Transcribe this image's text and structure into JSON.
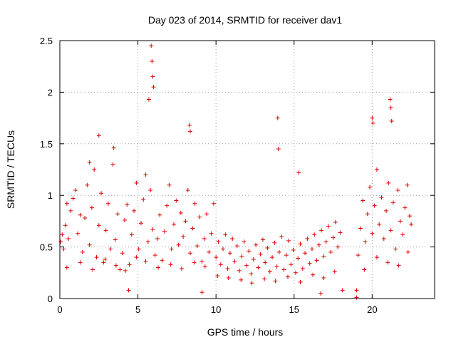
{
  "chart_data": {
    "type": "scatter",
    "title": "Day 023 of 2014, SRMTID for receiver dav1",
    "xlabel": "GPS time / hours",
    "ylabel": "SRMTID / TECUs",
    "xlim": [
      0,
      24
    ],
    "ylim": [
      0,
      2.5
    ],
    "xticks": [
      0,
      5,
      10,
      15,
      20
    ],
    "yticks": [
      0,
      0.5,
      1,
      1.5,
      2,
      2.5
    ],
    "xtick_labels": [
      "0",
      "5",
      "10",
      "15",
      "20"
    ],
    "ytick_labels": [
      "0",
      "0.5",
      "1",
      "1.5",
      "2",
      "2.5"
    ],
    "grid": true,
    "marker": "plus",
    "series": [
      {
        "name": "SRMTID",
        "color": "#e00000",
        "x": [
          0.05,
          0.15,
          0.25,
          0.35,
          0.45,
          0.55,
          0.7,
          0.85,
          1.0,
          1.15,
          1.3,
          1.45,
          1.6,
          1.75,
          1.9,
          2.05,
          2.2,
          2.35,
          2.5,
          2.65,
          2.8,
          2.95,
          3.1,
          3.25,
          3.4,
          3.55,
          3.7,
          3.85,
          4.0,
          4.15,
          4.3,
          4.45,
          4.6,
          4.75,
          4.9,
          5.05,
          5.2,
          5.35,
          5.5,
          5.65,
          5.8,
          5.95,
          6.1,
          6.25,
          6.4,
          6.55,
          6.7,
          6.85,
          7.0,
          7.15,
          7.3,
          7.45,
          7.6,
          7.75,
          7.9,
          8.05,
          8.2,
          8.35,
          8.5,
          8.65,
          8.8,
          8.95,
          9.1,
          9.25,
          9.4,
          9.55,
          9.7,
          9.85,
          10.0,
          10.15,
          10.3,
          10.45,
          10.6,
          10.75,
          10.9,
          11.05,
          11.2,
          11.35,
          11.5,
          11.65,
          11.8,
          11.95,
          12.1,
          12.25,
          12.4,
          12.55,
          12.7,
          12.85,
          13.0,
          13.15,
          13.3,
          13.45,
          13.6,
          13.75,
          13.9,
          14.05,
          14.2,
          14.35,
          14.5,
          14.65,
          14.8,
          14.95,
          15.1,
          15.25,
          15.4,
          15.55,
          15.7,
          15.85,
          16.0,
          16.15,
          16.3,
          16.45,
          16.6,
          16.75,
          16.9,
          17.05,
          17.2,
          17.35,
          17.5,
          17.65,
          17.8,
          17.95,
          19.0,
          19.1,
          19.25,
          19.4,
          19.55,
          19.7,
          19.85,
          20.0,
          20.15,
          20.3,
          20.45,
          20.6,
          20.75,
          20.9,
          21.05,
          21.2,
          21.35,
          21.5,
          21.65,
          21.8,
          21.95,
          22.1,
          22.25,
          22.4,
          22.5,
          5.85,
          5.9,
          5.95,
          6.0,
          5.7,
          2.5,
          8.3,
          8.35,
          13.95,
          21.15,
          21.2,
          21.25,
          20.0,
          20.05,
          3.45,
          1.9,
          14.0,
          15.3,
          0.45,
          1.3,
          2.1,
          2.9,
          3.6,
          4.2,
          4.9,
          5.5,
          6.3,
          7.1,
          7.8,
          8.6,
          9.3,
          10.1,
          10.8,
          11.6,
          12.3,
          13.1,
          13.8,
          14.6,
          15.4,
          16.2,
          16.9,
          17.6,
          19.5,
          20.3,
          21.0,
          21.7,
          22.3,
          4.4,
          9.1,
          16.7,
          18.1,
          19.0
        ],
        "y": [
          0.55,
          0.62,
          0.48,
          0.71,
          0.92,
          0.58,
          0.85,
          0.97,
          1.05,
          0.63,
          0.81,
          0.45,
          0.78,
          1.1,
          0.52,
          0.88,
          1.25,
          0.4,
          0.71,
          1.02,
          0.35,
          0.66,
          0.92,
          0.48,
          1.3,
          0.57,
          0.82,
          0.28,
          0.44,
          0.76,
          0.91,
          0.33,
          0.62,
          0.85,
          1.12,
          0.48,
          0.73,
          0.96,
          1.2,
          0.55,
          1.05,
          0.67,
          0.42,
          0.58,
          0.81,
          0.37,
          0.65,
          0.9,
          1.1,
          0.48,
          0.72,
          0.95,
          0.52,
          0.83,
          0.6,
          0.75,
          1.05,
          0.44,
          0.68,
          0.92,
          0.51,
          0.79,
          0.36,
          0.58,
          0.82,
          0.45,
          0.63,
          0.92,
          0.4,
          0.55,
          0.33,
          0.48,
          0.62,
          0.29,
          0.44,
          0.58,
          0.36,
          0.51,
          0.27,
          0.41,
          0.55,
          0.32,
          0.46,
          0.24,
          0.38,
          0.52,
          0.3,
          0.43,
          0.57,
          0.35,
          0.49,
          0.26,
          0.4,
          0.54,
          0.31,
          0.45,
          0.6,
          0.28,
          0.42,
          0.56,
          0.33,
          0.47,
          0.25,
          0.39,
          0.53,
          0.29,
          0.44,
          0.58,
          0.34,
          0.48,
          0.62,
          0.37,
          0.52,
          0.66,
          0.41,
          0.55,
          0.7,
          0.45,
          0.59,
          0.74,
          0.5,
          0.64,
          0.08,
          0.42,
          0.68,
          0.95,
          0.55,
          0.82,
          1.08,
          0.63,
          0.9,
          1.25,
          0.72,
          0.98,
          0.58,
          0.85,
          1.12,
          0.66,
          0.93,
          0.48,
          1.05,
          0.75,
          0.62,
          0.88,
          1.1,
          0.8,
          0.72,
          2.45,
          2.3,
          2.15,
          2.05,
          1.93,
          1.58,
          1.68,
          1.62,
          1.75,
          1.93,
          1.85,
          1.72,
          1.75,
          1.7,
          1.46,
          1.32,
          1.45,
          1.22,
          0.3,
          0.35,
          0.28,
          0.38,
          0.32,
          0.27,
          0.4,
          0.36,
          0.3,
          0.33,
          0.29,
          0.35,
          0.31,
          0.22,
          0.2,
          0.18,
          0.15,
          0.19,
          0.17,
          0.21,
          0.16,
          0.23,
          0.2,
          0.26,
          0.28,
          0.4,
          0.35,
          0.32,
          0.45,
          0.08,
          0.06,
          0.05,
          0.08,
          0.01
        ]
      }
    ]
  }
}
